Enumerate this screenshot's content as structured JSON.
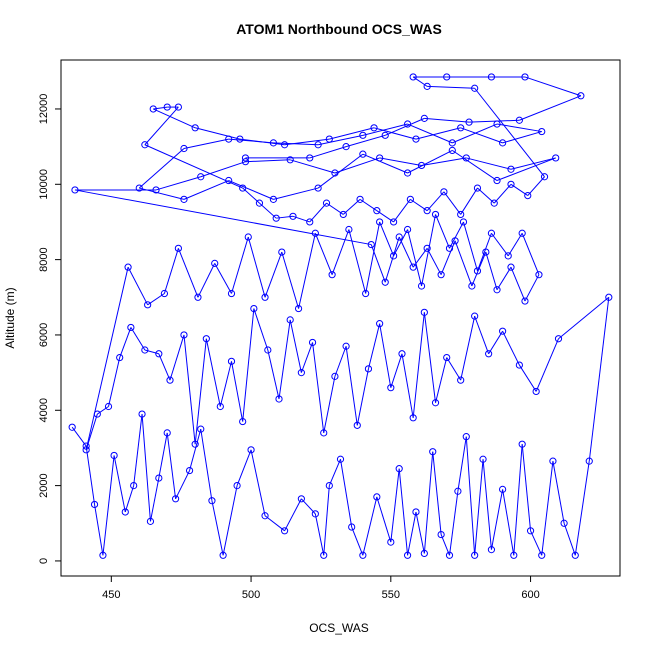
{
  "chart_data": {
    "type": "scatter",
    "title": "ATOM1 Northbound OCS_WAS",
    "xlabel": "OCS_WAS",
    "ylabel": "Altitude (m)",
    "xlim": [
      432,
      632
    ],
    "ylim": [
      -400,
      13300
    ],
    "xticks": [
      450,
      500,
      550,
      600
    ],
    "yticks": [
      0,
      2000,
      4000,
      6000,
      8000,
      10000,
      12000
    ],
    "grid": false,
    "legend": "none",
    "style": "points connected by lines (R type='o' open circles)",
    "color": "#0000ff",
    "series": [
      {
        "points": [
          [
            436,
            3550
          ],
          [
            441,
            3050
          ],
          [
            444,
            1500
          ],
          [
            447,
            150
          ],
          [
            451,
            2800
          ],
          [
            455,
            1300
          ],
          [
            458,
            2000
          ],
          [
            461,
            3900
          ],
          [
            464,
            1050
          ],
          [
            467,
            2200
          ],
          [
            470,
            3400
          ],
          [
            473,
            1650
          ],
          [
            478,
            2400
          ],
          [
            482,
            3500
          ],
          [
            486,
            1600
          ],
          [
            490,
            150
          ],
          [
            495,
            2000
          ],
          [
            500,
            2950
          ],
          [
            505,
            1200
          ],
          [
            512,
            800
          ],
          [
            518,
            1650
          ],
          [
            523,
            1250
          ],
          [
            526,
            150
          ],
          [
            528,
            2000
          ],
          [
            532,
            2700
          ],
          [
            536,
            900
          ],
          [
            540,
            150
          ],
          [
            545,
            1700
          ],
          [
            550,
            500
          ],
          [
            553,
            2450
          ],
          [
            556,
            150
          ],
          [
            559,
            1300
          ],
          [
            562,
            200
          ],
          [
            565,
            2900
          ],
          [
            568,
            700
          ],
          [
            571,
            150
          ],
          [
            574,
            1850
          ],
          [
            577,
            3300
          ],
          [
            580,
            150
          ],
          [
            583,
            2700
          ],
          [
            586,
            300
          ],
          [
            590,
            1900
          ],
          [
            594,
            150
          ],
          [
            597,
            3100
          ],
          [
            600,
            800
          ],
          [
            604,
            150
          ],
          [
            608,
            2650
          ],
          [
            612,
            1000
          ],
          [
            616,
            150
          ],
          [
            621,
            2650
          ],
          [
            628,
            7000
          ],
          [
            610,
            5900
          ],
          [
            602,
            4500
          ],
          [
            596,
            5200
          ],
          [
            590,
            6100
          ],
          [
            585,
            5500
          ],
          [
            580,
            6500
          ],
          [
            575,
            4800
          ],
          [
            570,
            5400
          ],
          [
            566,
            4200
          ],
          [
            562,
            6600
          ],
          [
            558,
            3800
          ],
          [
            554,
            5500
          ],
          [
            550,
            4600
          ],
          [
            546,
            6300
          ],
          [
            542,
            5100
          ],
          [
            538,
            3600
          ],
          [
            534,
            5700
          ],
          [
            530,
            4900
          ],
          [
            526,
            3400
          ],
          [
            522,
            5800
          ],
          [
            518,
            5000
          ],
          [
            514,
            6400
          ],
          [
            510,
            4300
          ],
          [
            506,
            5600
          ],
          [
            501,
            6700
          ],
          [
            497,
            3700
          ],
          [
            493,
            5300
          ],
          [
            489,
            4100
          ],
          [
            484,
            5900
          ],
          [
            480,
            3100
          ],
          [
            476,
            6000
          ],
          [
            471,
            4800
          ],
          [
            467,
            5500
          ],
          [
            462,
            5600
          ],
          [
            457,
            6200
          ],
          [
            453,
            5400
          ],
          [
            449,
            4100
          ],
          [
            445,
            3900
          ],
          [
            441,
            2950
          ],
          [
            456,
            7800
          ],
          [
            463,
            6800
          ],
          [
            469,
            7100
          ],
          [
            474,
            8300
          ],
          [
            481,
            7000
          ],
          [
            487,
            7900
          ],
          [
            493,
            7100
          ],
          [
            499,
            8600
          ],
          [
            505,
            7000
          ],
          [
            511,
            8200
          ],
          [
            517,
            6700
          ],
          [
            523,
            8700
          ],
          [
            529,
            7600
          ],
          [
            535,
            8800
          ],
          [
            541,
            7100
          ],
          [
            546,
            9000
          ],
          [
            551,
            8100
          ],
          [
            556,
            8800
          ],
          [
            561,
            7300
          ],
          [
            566,
            9200
          ],
          [
            571,
            8300
          ],
          [
            576,
            9000
          ],
          [
            581,
            7700
          ],
          [
            586,
            8700
          ],
          [
            592,
            8100
          ],
          [
            597,
            8700
          ],
          [
            603,
            7600
          ],
          [
            598,
            6900
          ],
          [
            593,
            7800
          ],
          [
            588,
            7200
          ],
          [
            584,
            8200
          ],
          [
            579,
            7300
          ],
          [
            573,
            8500
          ],
          [
            568,
            7600
          ],
          [
            563,
            8300
          ],
          [
            558,
            7800
          ],
          [
            553,
            8600
          ],
          [
            548,
            7400
          ],
          [
            543,
            8400
          ],
          [
            437,
            9850
          ],
          [
            466,
            9850
          ],
          [
            482,
            10200
          ],
          [
            498,
            10600
          ],
          [
            514,
            10650
          ],
          [
            530,
            10300
          ],
          [
            546,
            10700
          ],
          [
            561,
            10500
          ],
          [
            577,
            10700
          ],
          [
            593,
            10400
          ],
          [
            609,
            10700
          ],
          [
            588,
            10100
          ],
          [
            572,
            10900
          ],
          [
            556,
            10300
          ],
          [
            540,
            10800
          ],
          [
            524,
            9900
          ],
          [
            508,
            9600
          ],
          [
            492,
            10100
          ],
          [
            476,
            9600
          ],
          [
            460,
            9900
          ],
          [
            476,
            10950
          ],
          [
            492,
            11200
          ],
          [
            508,
            11100
          ],
          [
            524,
            11050
          ],
          [
            540,
            11300
          ],
          [
            556,
            11600
          ],
          [
            572,
            11100
          ],
          [
            588,
            11600
          ],
          [
            604,
            11400
          ],
          [
            590,
            11100
          ],
          [
            575,
            11500
          ],
          [
            559,
            11200
          ],
          [
            544,
            11500
          ],
          [
            528,
            11200
          ],
          [
            512,
            11050
          ],
          [
            496,
            11200
          ],
          [
            480,
            11500
          ],
          [
            465,
            12000
          ],
          [
            470,
            12050
          ],
          [
            474,
            12050
          ],
          [
            462,
            11050
          ],
          [
            497,
            9900
          ],
          [
            503,
            9500
          ],
          [
            509,
            9100
          ],
          [
            515,
            9150
          ],
          [
            521,
            9000
          ],
          [
            527,
            9500
          ],
          [
            533,
            9200
          ],
          [
            539,
            9600
          ],
          [
            545,
            9300
          ],
          [
            551,
            9000
          ],
          [
            557,
            9600
          ],
          [
            563,
            9300
          ],
          [
            569,
            9800
          ],
          [
            575,
            9200
          ],
          [
            581,
            9900
          ],
          [
            587,
            9500
          ],
          [
            593,
            10000
          ],
          [
            599,
            9700
          ],
          [
            605,
            10200
          ],
          [
            580,
            12550
          ],
          [
            563,
            12600
          ],
          [
            558,
            12850
          ],
          [
            570,
            12850
          ],
          [
            586,
            12850
          ],
          [
            598,
            12850
          ],
          [
            618,
            12350
          ],
          [
            596,
            11700
          ],
          [
            578,
            11650
          ],
          [
            562,
            11750
          ],
          [
            548,
            11300
          ],
          [
            534,
            11000
          ],
          [
            521,
            10700
          ],
          [
            498,
            10700
          ]
        ]
      }
    ]
  }
}
